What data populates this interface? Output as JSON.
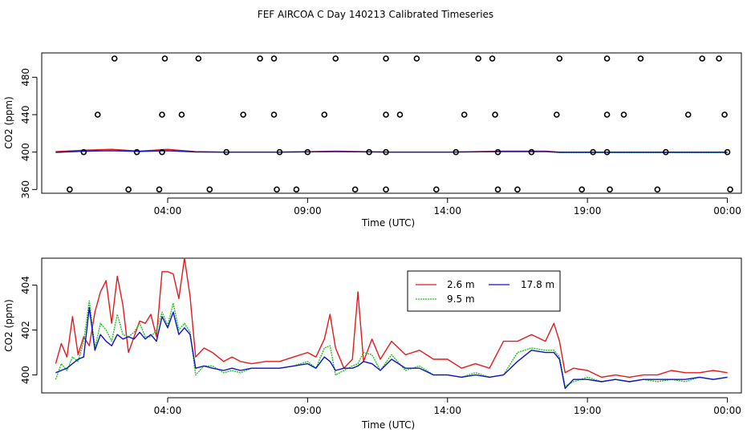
{
  "figure": {
    "title": "FEF AIRCOA C  Day 140213  Calibrated Timeseries"
  },
  "colors": {
    "red": "#e41a1c",
    "green": "#1fc21f",
    "blue": "#1010cc",
    "axis": "#000000"
  },
  "chart_data": [
    {
      "type": "scatter",
      "id": "top",
      "title": "",
      "xlabel": "Time (UTC)",
      "ylabel": "CO2 (ppm)",
      "xlim": [
        -0.5,
        24.5
      ],
      "ylim": [
        356,
        506
      ],
      "x_ticks": [
        4,
        9,
        14,
        19,
        24
      ],
      "x_tick_labels": [
        "04:00",
        "09:00",
        "14:00",
        "19:00",
        "00:00"
      ],
      "y_ticks": [
        360,
        400,
        440,
        480
      ],
      "y_tick_labels": [
        "360",
        "400",
        "440",
        "480"
      ],
      "point_series": [
        {
          "name": "500 ppm points",
          "y": 500,
          "x": [
            2.1,
            3.9,
            5.1,
            7.3,
            7.8,
            10.0,
            11.8,
            12.9,
            15.1,
            15.6,
            18.0,
            19.7,
            20.9,
            23.1,
            23.7
          ]
        },
        {
          "name": "440 ppm points",
          "y": 440,
          "x": [
            1.5,
            3.8,
            4.5,
            6.7,
            7.8,
            9.6,
            11.8,
            12.3,
            14.6,
            15.7,
            17.9,
            19.7,
            20.3,
            22.6,
            23.9
          ]
        },
        {
          "name": "400 ppm points",
          "y": 400,
          "x": [
            1.0,
            2.9,
            3.8,
            6.1,
            8.0,
            9.0,
            11.2,
            11.8,
            14.3,
            15.8,
            17.0,
            19.2,
            19.7,
            21.8,
            24.0
          ]
        },
        {
          "name": "360 ppm points",
          "y": 360,
          "x": [
            0.5,
            2.6,
            3.7,
            5.5,
            7.9,
            8.6,
            10.7,
            11.8,
            13.6,
            15.8,
            16.5,
            18.8,
            19.8,
            21.5,
            24.1
          ]
        }
      ],
      "series": [
        {
          "name": "2.6 m",
          "color_key": "red",
          "x": [
            0,
            1,
            2,
            3,
            4,
            5,
            6,
            8,
            10,
            12,
            14,
            16,
            17.5,
            18,
            19,
            24
          ],
          "values": [
            400.5,
            402,
            403,
            401,
            403,
            400.5,
            400,
            400,
            401,
            400,
            400,
            401,
            401,
            400,
            400,
            400
          ]
        },
        {
          "name": "9.5 m",
          "color_key": "green",
          "x": [
            0,
            1,
            2,
            3,
            4,
            5,
            6,
            8,
            10,
            12,
            14,
            16,
            17.5,
            18,
            19,
            24
          ],
          "values": [
            399.5,
            401,
            401.5,
            400.5,
            401.5,
            400,
            400,
            400,
            400.5,
            400,
            400,
            400.5,
            400.5,
            399.5,
            399.5,
            399.5
          ]
        },
        {
          "name": "17.8 m",
          "color_key": "blue",
          "x": [
            0,
            1,
            2,
            3,
            4,
            5,
            6,
            8,
            10,
            12,
            14,
            16,
            17.5,
            18,
            19,
            24
          ],
          "values": [
            399.8,
            401,
            401.5,
            400.8,
            401.5,
            400.2,
            400,
            400,
            400.5,
            400,
            400,
            400.5,
            400.5,
            399.8,
            399.8,
            399.8
          ]
        }
      ]
    },
    {
      "type": "line",
      "id": "bottom",
      "title": "",
      "xlabel": "Time (UTC)",
      "ylabel": "CO2 (ppm)",
      "xlim": [
        -0.5,
        24.5
      ],
      "ylim": [
        399.2,
        405.2
      ],
      "x_ticks": [
        4,
        9,
        14,
        19,
        24
      ],
      "x_tick_labels": [
        "04:00",
        "09:00",
        "14:00",
        "19:00",
        "00:00"
      ],
      "y_ticks": [
        400,
        402,
        404
      ],
      "y_tick_labels": [
        "400",
        "402",
        "404"
      ],
      "legend": {
        "placement": "top-center",
        "entries": [
          "2.6 m",
          "9.5 m",
          "17.8 m"
        ]
      },
      "series": [
        {
          "name": "2.6 m",
          "color_key": "red",
          "x": [
            0.0,
            0.2,
            0.4,
            0.6,
            0.8,
            1.0,
            1.2,
            1.4,
            1.6,
            1.8,
            2.0,
            2.2,
            2.4,
            2.6,
            2.8,
            3.0,
            3.2,
            3.4,
            3.6,
            3.8,
            4.0,
            4.2,
            4.4,
            4.6,
            4.8,
            5.0,
            5.3,
            5.6,
            6.0,
            6.3,
            6.6,
            7.0,
            7.5,
            8.0,
            8.5,
            9.0,
            9.3,
            9.6,
            9.8,
            10.0,
            10.3,
            10.6,
            10.8,
            11.0,
            11.3,
            11.6,
            12.0,
            12.5,
            13.0,
            13.5,
            14.0,
            14.5,
            15.0,
            15.5,
            16.0,
            16.5,
            17.0,
            17.5,
            17.8,
            18.0,
            18.2,
            18.5,
            19.0,
            19.5,
            20.0,
            20.5,
            21.0,
            21.5,
            22.0,
            22.5,
            23.0,
            23.5,
            24.0
          ],
          "values": [
            400.5,
            401.4,
            400.8,
            402.6,
            400.9,
            401.7,
            401.3,
            402.8,
            403.7,
            404.2,
            402.3,
            404.4,
            403.1,
            401.0,
            401.7,
            402.4,
            402.3,
            402.7,
            401.7,
            404.6,
            404.6,
            404.5,
            403.4,
            405.2,
            403.5,
            400.8,
            401.2,
            401.0,
            400.6,
            400.8,
            400.6,
            400.5,
            400.6,
            400.6,
            400.8,
            401.0,
            400.8,
            401.6,
            402.7,
            401.2,
            400.3,
            400.7,
            403.7,
            400.6,
            401.6,
            400.7,
            401.5,
            400.9,
            401.1,
            400.7,
            400.7,
            400.3,
            400.5,
            400.3,
            401.5,
            401.5,
            401.8,
            401.5,
            402.3,
            401.5,
            400.1,
            400.3,
            400.2,
            399.9,
            400.0,
            399.9,
            400.0,
            400.0,
            400.2,
            400.1,
            400.1,
            400.2,
            400.1
          ]
        },
        {
          "name": "9.5 m",
          "color_key": "green",
          "x": [
            0.0,
            0.2,
            0.4,
            0.6,
            0.8,
            1.0,
            1.2,
            1.4,
            1.6,
            1.8,
            2.0,
            2.2,
            2.4,
            2.6,
            2.8,
            3.0,
            3.2,
            3.4,
            3.6,
            3.8,
            4.0,
            4.2,
            4.4,
            4.6,
            4.8,
            5.0,
            5.3,
            5.6,
            6.0,
            6.3,
            6.6,
            7.0,
            7.5,
            8.0,
            8.5,
            9.0,
            9.3,
            9.6,
            9.8,
            10.0,
            10.3,
            10.6,
            10.8,
            11.0,
            11.3,
            11.6,
            12.0,
            12.5,
            13.0,
            13.5,
            14.0,
            14.5,
            15.0,
            15.5,
            16.0,
            16.5,
            17.0,
            17.5,
            17.8,
            18.0,
            18.2,
            18.5,
            19.0,
            19.5,
            20.0,
            20.5,
            21.0,
            21.5,
            22.0,
            22.5,
            23.0,
            23.5,
            24.0
          ],
          "values": [
            399.8,
            400.5,
            400.2,
            400.8,
            400.6,
            401.5,
            403.3,
            401.2,
            402.3,
            402.0,
            401.5,
            402.7,
            401.8,
            401.7,
            401.9,
            402.3,
            401.7,
            401.7,
            402.0,
            402.8,
            402.2,
            403.2,
            402.0,
            402.3,
            401.9,
            400.0,
            400.4,
            400.4,
            400.1,
            400.2,
            400.1,
            400.3,
            400.3,
            400.3,
            400.4,
            400.6,
            400.3,
            401.2,
            401.3,
            400.0,
            400.2,
            400.4,
            400.5,
            401.0,
            400.9,
            400.2,
            400.9,
            400.2,
            400.4,
            400.0,
            400.0,
            399.9,
            400.1,
            399.9,
            400.0,
            401.0,
            401.2,
            401.1,
            401.1,
            400.8,
            399.5,
            399.7,
            399.9,
            399.7,
            399.8,
            399.7,
            399.8,
            399.7,
            399.8,
            399.7,
            399.9,
            399.8,
            399.9
          ]
        },
        {
          "name": "17.8 m",
          "color_key": "blue",
          "x": [
            0.0,
            0.2,
            0.4,
            0.6,
            0.8,
            1.0,
            1.2,
            1.4,
            1.6,
            1.8,
            2.0,
            2.2,
            2.4,
            2.6,
            2.8,
            3.0,
            3.2,
            3.4,
            3.6,
            3.8,
            4.0,
            4.2,
            4.4,
            4.6,
            4.8,
            5.0,
            5.3,
            5.6,
            6.0,
            6.3,
            6.6,
            7.0,
            7.5,
            8.0,
            8.5,
            9.0,
            9.3,
            9.6,
            9.8,
            10.0,
            10.3,
            10.6,
            10.8,
            11.0,
            11.3,
            11.6,
            12.0,
            12.5,
            13.0,
            13.5,
            14.0,
            14.5,
            15.0,
            15.5,
            16.0,
            16.5,
            17.0,
            17.5,
            17.8,
            18.0,
            18.2,
            18.5,
            19.0,
            19.5,
            20.0,
            20.5,
            21.0,
            21.5,
            22.0,
            22.5,
            23.0,
            23.5,
            24.0
          ],
          "values": [
            400.1,
            400.2,
            400.3,
            400.5,
            400.7,
            400.8,
            403.0,
            401.1,
            401.8,
            401.5,
            401.3,
            401.8,
            401.6,
            401.7,
            401.6,
            401.9,
            401.6,
            401.8,
            401.5,
            402.6,
            402.1,
            402.8,
            401.8,
            402.1,
            401.8,
            400.3,
            400.4,
            400.3,
            400.2,
            400.3,
            400.2,
            400.3,
            400.3,
            400.3,
            400.4,
            400.5,
            400.3,
            400.8,
            400.6,
            400.2,
            400.3,
            400.3,
            400.4,
            400.6,
            400.5,
            400.2,
            400.7,
            400.3,
            400.3,
            400.0,
            400.0,
            399.9,
            400.0,
            399.9,
            400.0,
            400.6,
            401.1,
            401.0,
            401.0,
            400.7,
            399.4,
            399.8,
            399.8,
            399.7,
            399.8,
            399.7,
            399.8,
            399.8,
            399.8,
            399.8,
            399.9,
            399.8,
            399.9
          ]
        }
      ]
    }
  ]
}
